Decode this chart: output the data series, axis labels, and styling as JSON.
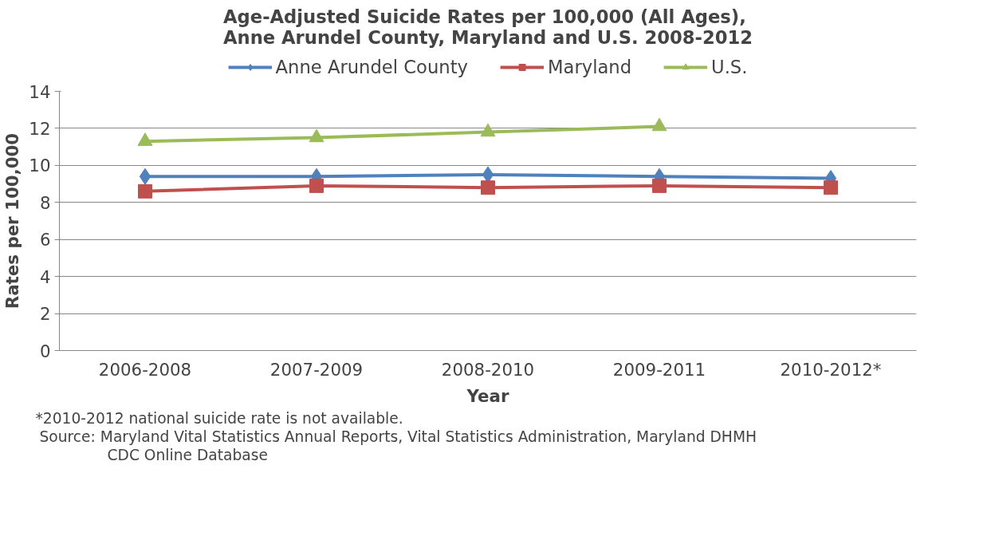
{
  "chart_data": {
    "type": "line",
    "title": "Age-Adjusted Suicide Rates per 100,000 (All Ages),\nAnne Arundel County, Maryland and U.S. 2008-2012",
    "xlabel": "Year",
    "ylabel": "Rates per 100,000",
    "categories": [
      "2006-2008",
      "2007-2009",
      "2008-2010",
      "2009-2011",
      "2010-2012*"
    ],
    "series": [
      {
        "name": "Anne Arundel County",
        "color": "#4f81bd",
        "marker": "diamond",
        "values": [
          9.4,
          9.4,
          9.5,
          9.4,
          9.3
        ]
      },
      {
        "name": "Maryland",
        "color": "#c0504d",
        "marker": "square",
        "values": [
          8.6,
          8.9,
          8.8,
          8.9,
          8.8
        ]
      },
      {
        "name": "U.S.",
        "color": "#9bbb59",
        "marker": "triangle",
        "values": [
          11.3,
          11.5,
          11.8,
          12.1,
          null
        ]
      }
    ],
    "ylim": [
      0,
      14
    ],
    "yticks": [
      0,
      2,
      4,
      6,
      8,
      10,
      12,
      14
    ],
    "grid": "y",
    "legend": "top",
    "line_style": "solid",
    "annotations": [
      "*2010-2012 national suicide rate is not available.",
      "Source:  Maryland Vital Statistics Annual Reports, Vital Statistics Administration, Maryland DHMH",
      "CDC Online Database"
    ]
  }
}
